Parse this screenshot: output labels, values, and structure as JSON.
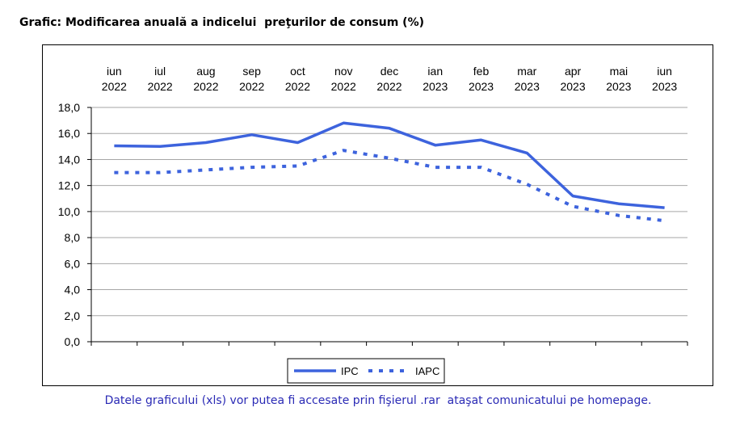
{
  "title": "Grafic: Modificarea anuală a indicelui  preţurilor de consum (%)",
  "footnote": "Datele graficului (xls) vor putea fi accesate prin fişierul .rar  ataşat comunicatului pe homepage.",
  "chart_data": {
    "type": "line",
    "categories": [
      [
        "iun",
        "2022"
      ],
      [
        "iul",
        "2022"
      ],
      [
        "aug",
        "2022"
      ],
      [
        "sep",
        "2022"
      ],
      [
        "oct",
        "2022"
      ],
      [
        "nov",
        "2022"
      ],
      [
        "dec",
        "2022"
      ],
      [
        "ian",
        "2023"
      ],
      [
        "feb",
        "2023"
      ],
      [
        "mar",
        "2023"
      ],
      [
        "apr",
        "2023"
      ],
      [
        "mai",
        "2023"
      ],
      [
        "iun",
        "2023"
      ]
    ],
    "series": [
      {
        "name": "IPC",
        "style": "solid",
        "color": "#3d63dd",
        "values": [
          15.05,
          15.0,
          15.3,
          15.9,
          15.3,
          16.8,
          16.4,
          15.1,
          15.5,
          14.5,
          11.2,
          10.6,
          10.3
        ]
      },
      {
        "name": "IAPC",
        "style": "dotted",
        "color": "#3d63dd",
        "values": [
          13.0,
          13.0,
          13.2,
          13.4,
          13.5,
          14.7,
          14.1,
          13.4,
          13.4,
          12.1,
          10.4,
          9.7,
          9.3
        ]
      }
    ],
    "yticks": [
      "0,0",
      "2,0",
      "4,0",
      "6,0",
      "8,0",
      "10,0",
      "12,0",
      "14,0",
      "16,0",
      "18,0"
    ],
    "ylim": [
      0,
      18
    ],
    "grid": true,
    "x_axis_position": "top",
    "legend_position": "bottom-center"
  }
}
